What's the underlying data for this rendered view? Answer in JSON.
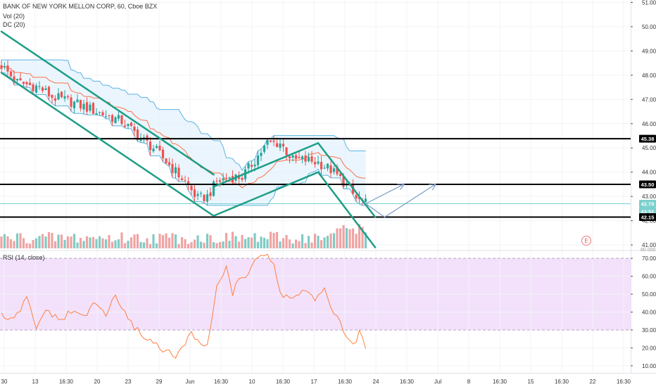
{
  "header": {
    "title": "BANK OF NEW YORK MELLON CORP, 60, Cboe BZX",
    "vol_label": "Vol (20)",
    "dc_label": "DC (20)",
    "rsi_label": "RSI (14, close)"
  },
  "price_axis": {
    "ticks": [
      "51.00",
      "50.00",
      "49.00",
      "48.00",
      "47.00",
      "46.00",
      "45.00",
      "44.00",
      "43.00",
      "42.00",
      "41.00"
    ],
    "badges": [
      {
        "text": "45.38",
        "kind": "level"
      },
      {
        "text": "43.50",
        "kind": "level"
      },
      {
        "text": "42.70",
        "kind": "price"
      },
      {
        "text": "43:51",
        "kind": "countdown"
      },
      {
        "text": "42.15",
        "kind": "level"
      }
    ],
    "bottom_label": "80.000"
  },
  "rsi_axis": {
    "ticks": [
      "70.00",
      "60.00",
      "50.00",
      "40.00",
      "30.00",
      "20.00",
      "10.00"
    ]
  },
  "time_axis": {
    "labels": [
      "30",
      "13",
      "16:30",
      "20",
      "23",
      "29",
      "Jun",
      "16:30",
      "10",
      "16:30",
      "17",
      "16:30",
      "24",
      "16:30",
      "Jul",
      "8",
      "16:30",
      "15",
      "16:30",
      "22",
      "16:30"
    ]
  },
  "earnings_marker": "E",
  "colors": {
    "up": "#26a69a",
    "down": "#ef5350",
    "vol_up": "#80cbc4",
    "vol_down": "#f0a3a3",
    "dc_band": "#5ab4e0",
    "dc_fill": "#e3f2fd",
    "dc_mid": "#ff7043",
    "trendline": "#1e9e86",
    "projection": "#7a9cc6",
    "rsi_line": "#ff7f3f",
    "rsi_band": "#f3e1fb",
    "level": "#000000",
    "price_line": "#7ad0cd"
  },
  "chart_data": {
    "type": "candlestick",
    "title": "BANK OF NEW YORK MELLON CORP, 60, Cboe BZX",
    "interval": "60",
    "y_range": [
      40.8,
      51.1
    ],
    "rsi_range": [
      6,
      74
    ],
    "horizontal_levels": [
      45.38,
      43.5,
      42.15
    ],
    "last_price": 42.7,
    "countdown": "43:51",
    "rsi_bands": [
      30,
      70
    ],
    "trend_lines": [
      {
        "from": {
          "bar": 0,
          "price": 49.8
        },
        "to": {
          "bar": 67,
          "price": 43.9
        }
      },
      {
        "from": {
          "bar": 0,
          "price": 48.1
        },
        "to": {
          "bar": 67,
          "price": 42.2
        }
      },
      {
        "from": {
          "bar": 67,
          "price": 43.4
        },
        "to": {
          "bar": 100,
          "price": 45.2
        }
      },
      {
        "from": {
          "bar": 67,
          "price": 42.2
        },
        "to": {
          "bar": 100,
          "price": 44.0
        }
      },
      {
        "from": {
          "bar": 100,
          "price": 45.2
        },
        "to": {
          "bar": 118,
          "price": 42.15
        }
      },
      {
        "from": {
          "bar": 100,
          "price": 44.0
        },
        "to": {
          "bar": 118,
          "price": 40.9
        }
      }
    ],
    "projections": [
      {
        "points": [
          {
            "bar": 115,
            "price": 42.7
          },
          {
            "bar": 127,
            "price": 43.5
          }
        ]
      },
      {
        "points": [
          {
            "bar": 115,
            "price": 42.7
          },
          {
            "bar": 121,
            "price": 42.15
          },
          {
            "bar": 137,
            "price": 43.5
          }
        ]
      }
    ],
    "close_anchors": [
      [
        0,
        48.4
      ],
      [
        5,
        47.7
      ],
      [
        12,
        47.5
      ],
      [
        16,
        47.1
      ],
      [
        22,
        46.9
      ],
      [
        28,
        46.6
      ],
      [
        34,
        46.3
      ],
      [
        38,
        46.1
      ],
      [
        44,
        45.4
      ],
      [
        48,
        45.0
      ],
      [
        53,
        44.3
      ],
      [
        58,
        43.6
      ],
      [
        62,
        42.9
      ],
      [
        65,
        43.0
      ],
      [
        68,
        43.6
      ],
      [
        72,
        43.8
      ],
      [
        76,
        43.8
      ],
      [
        80,
        44.5
      ],
      [
        84,
        45.2
      ],
      [
        88,
        45.2
      ],
      [
        92,
        44.5
      ],
      [
        96,
        44.5
      ],
      [
        100,
        44.4
      ],
      [
        104,
        44.1
      ],
      [
        108,
        43.6
      ],
      [
        112,
        42.9
      ],
      [
        115,
        42.7
      ]
    ],
    "rsi_anchors": [
      [
        0,
        38
      ],
      [
        4,
        35
      ],
      [
        8,
        48
      ],
      [
        11,
        30
      ],
      [
        14,
        42
      ],
      [
        18,
        35
      ],
      [
        22,
        40
      ],
      [
        26,
        38
      ],
      [
        30,
        45
      ],
      [
        33,
        38
      ],
      [
        36,
        50
      ],
      [
        40,
        35
      ],
      [
        43,
        30
      ],
      [
        46,
        25
      ],
      [
        49,
        22
      ],
      [
        52,
        18
      ],
      [
        55,
        15
      ],
      [
        58,
        22
      ],
      [
        60,
        28
      ],
      [
        62,
        25
      ],
      [
        65,
        20
      ],
      [
        68,
        55
      ],
      [
        71,
        65
      ],
      [
        73,
        50
      ],
      [
        75,
        58
      ],
      [
        78,
        62
      ],
      [
        80,
        70
      ],
      [
        83,
        72
      ],
      [
        86,
        67
      ],
      [
        88,
        50
      ],
      [
        92,
        48
      ],
      [
        96,
        52
      ],
      [
        99,
        46
      ],
      [
        102,
        52
      ],
      [
        105,
        40
      ],
      [
        107,
        33
      ],
      [
        109,
        24
      ],
      [
        111,
        22
      ],
      [
        113,
        28
      ],
      [
        115,
        20
      ],
      [
        117,
        37
      ]
    ]
  }
}
